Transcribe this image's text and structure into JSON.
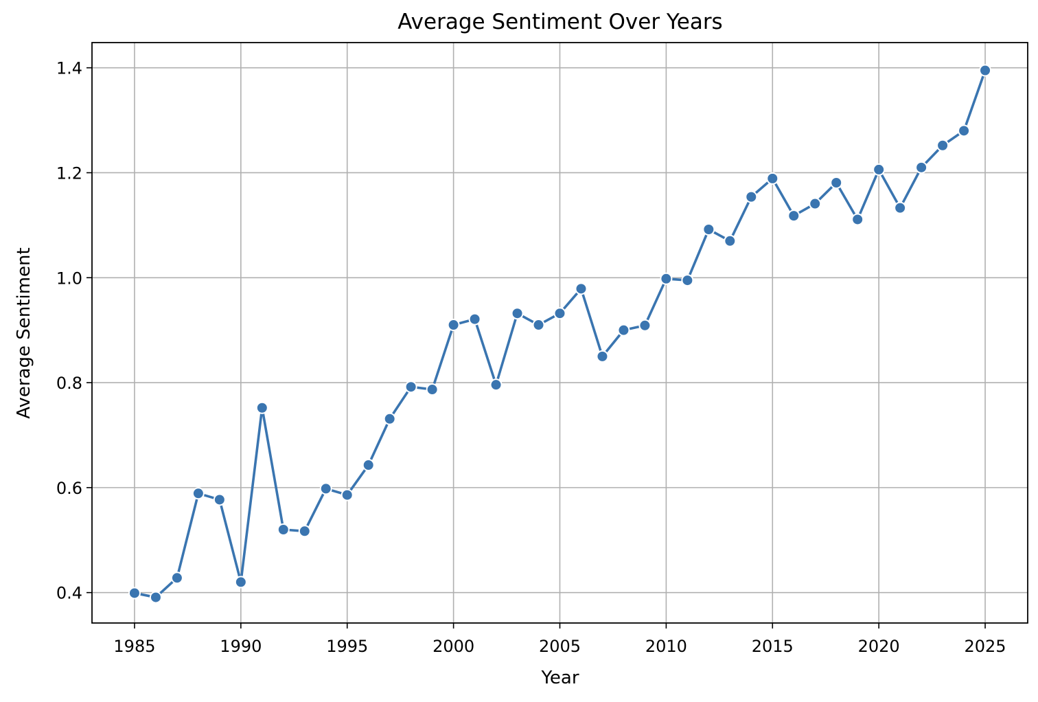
{
  "chart_data": {
    "type": "line",
    "title": "Average Sentiment Over Years",
    "xlabel": "Year",
    "ylabel": "Average Sentiment",
    "xlim": [
      1983,
      2027
    ],
    "ylim": [
      0.342,
      1.448
    ],
    "xticks": [
      1985,
      1990,
      1995,
      2000,
      2005,
      2010,
      2015,
      2020,
      2025
    ],
    "yticks": [
      0.4,
      0.6,
      0.8,
      1.0,
      1.2,
      1.4
    ],
    "ytick_labels": [
      "0.4",
      "0.6",
      "0.8",
      "1.0",
      "1.2",
      "1.4"
    ],
    "grid": true,
    "color": "#3a75b0",
    "series": [
      {
        "x": [
          1985,
          1986,
          1987,
          1988,
          1989,
          1990,
          1991,
          1992,
          1993,
          1994,
          1995,
          1996,
          1997,
          1998,
          1999,
          2000,
          2001,
          2002,
          2003,
          2004,
          2005,
          2006,
          2007,
          2008,
          2009,
          2010,
          2011,
          2012,
          2013,
          2014,
          2015,
          2016,
          2017,
          2018,
          2019,
          2020,
          2021,
          2022,
          2023,
          2024,
          2025
        ],
        "values": [
          0.399,
          0.391,
          0.428,
          0.589,
          0.577,
          0.42,
          0.752,
          0.52,
          0.517,
          0.598,
          0.586,
          0.643,
          0.731,
          0.792,
          0.787,
          0.91,
          0.921,
          0.796,
          0.932,
          0.91,
          0.932,
          0.979,
          0.85,
          0.9,
          0.909,
          0.998,
          0.995,
          1.092,
          1.07,
          1.154,
          1.189,
          1.118,
          1.141,
          1.181,
          1.111,
          1.206,
          1.133,
          1.21,
          1.252,
          1.28,
          1.395
        ]
      }
    ]
  }
}
